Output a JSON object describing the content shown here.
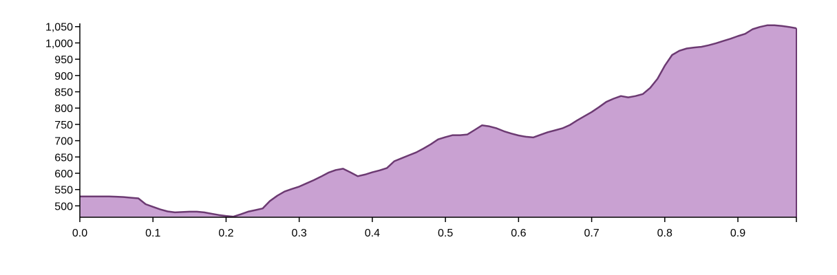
{
  "chart_data": {
    "type": "area",
    "title": "",
    "xlabel": "",
    "ylabel": "",
    "xlim": [
      0,
      0.98
    ],
    "ylim": [
      465,
      1060
    ],
    "grid": false,
    "legend": "none",
    "x_ticks": [
      0.0,
      0.1,
      0.2,
      0.3,
      0.4,
      0.5,
      0.6,
      0.7,
      0.8,
      0.9
    ],
    "x_tick_labels": [
      "0.0",
      "0.1",
      "0.2",
      "0.3",
      "0.4",
      "0.5",
      "0.6",
      "0.7",
      "0.8",
      "0.9"
    ],
    "y_ticks": [
      500,
      550,
      600,
      650,
      700,
      750,
      800,
      850,
      900,
      950,
      1000,
      1050
    ],
    "y_tick_labels": [
      "500",
      "550",
      "600",
      "650",
      "700",
      "750",
      "800",
      "850",
      "900",
      "950",
      "1,000",
      "1,050"
    ],
    "colors": {
      "fill": "#c9a1d2",
      "stroke": "#6c3a72",
      "axis": "#000000"
    },
    "series": [
      {
        "x": [
          0.0,
          0.01,
          0.02,
          0.03,
          0.04,
          0.05,
          0.06,
          0.07,
          0.08,
          0.09,
          0.1,
          0.11,
          0.12,
          0.13,
          0.14,
          0.15,
          0.16,
          0.17,
          0.18,
          0.19,
          0.2,
          0.21,
          0.22,
          0.23,
          0.24,
          0.25,
          0.26,
          0.27,
          0.28,
          0.29,
          0.3,
          0.31,
          0.32,
          0.33,
          0.34,
          0.35,
          0.36,
          0.37,
          0.38,
          0.39,
          0.4,
          0.41,
          0.42,
          0.43,
          0.44,
          0.45,
          0.46,
          0.47,
          0.48,
          0.49,
          0.5,
          0.51,
          0.52,
          0.53,
          0.54,
          0.55,
          0.56,
          0.57,
          0.58,
          0.59,
          0.6,
          0.61,
          0.62,
          0.63,
          0.64,
          0.65,
          0.66,
          0.67,
          0.68,
          0.69,
          0.7,
          0.71,
          0.72,
          0.73,
          0.74,
          0.75,
          0.76,
          0.77,
          0.78,
          0.79,
          0.8,
          0.81,
          0.82,
          0.83,
          0.84,
          0.85,
          0.86,
          0.87,
          0.88,
          0.89,
          0.9,
          0.91,
          0.92,
          0.93,
          0.94,
          0.95,
          0.96,
          0.97,
          0.98
        ],
        "values": [
          529,
          529,
          529,
          529,
          529,
          528,
          527,
          525,
          523,
          505,
          497,
          489,
          483,
          480,
          481,
          482,
          482,
          480,
          476,
          472,
          469,
          467,
          474,
          482,
          487,
          492,
          515,
          531,
          544,
          552,
          559,
          569,
          579,
          590,
          602,
          610,
          614,
          603,
          591,
          596,
          603,
          609,
          616,
          637,
          646,
          655,
          664,
          676,
          689,
          704,
          711,
          717,
          717,
          719,
          733,
          747,
          744,
          738,
          729,
          722,
          716,
          712,
          710,
          718,
          726,
          732,
          738,
          748,
          762,
          775,
          788,
          803,
          819,
          829,
          837,
          833,
          837,
          843,
          862,
          890,
          930,
          963,
          976,
          983,
          986,
          988,
          993,
          999,
          1006,
          1013,
          1021,
          1028,
          1042,
          1049,
          1054,
          1054,
          1052,
          1049,
          1045
        ]
      }
    ]
  }
}
